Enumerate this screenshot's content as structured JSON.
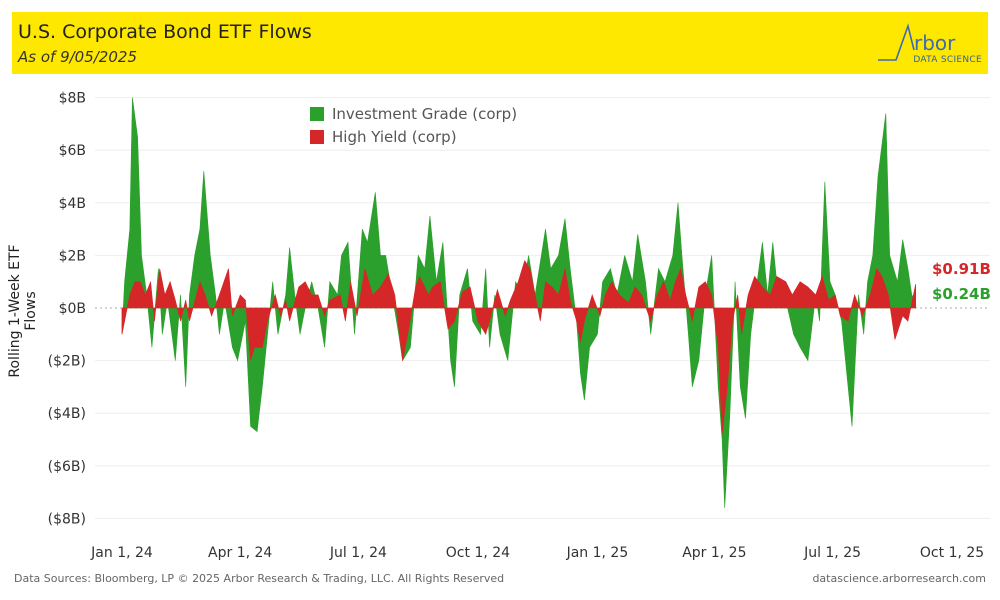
{
  "header": {
    "title": "U.S. Corporate Bond ETF Flows",
    "subtitle": "As of 9/05/2025",
    "logo_text": "Arbor",
    "logo_sub": "DATA SCIENCE"
  },
  "footer": {
    "sources": "Data Sources: Bloomberg, LP © 2025 Arbor Research & Trading, LLC. All Rights Reserved",
    "site": "datascience.arborresearch.com"
  },
  "colors": {
    "ig": "#2ca02c",
    "hy": "#d62728",
    "banner": "#FFE800"
  },
  "chart_data": {
    "type": "area",
    "title": "U.S. Corporate Bond ETF Flows",
    "ylabel": "Rolling 1-Week ETF Flows",
    "xlabel": "",
    "x_unit": "days since 2024-01-01",
    "ylim": [
      -8,
      8
    ],
    "yticks": [
      {
        "v": 8,
        "label": "$8B"
      },
      {
        "v": 6,
        "label": "$6B"
      },
      {
        "v": 4,
        "label": "$4B"
      },
      {
        "v": 2,
        "label": "$2B"
      },
      {
        "v": 0,
        "label": "$0B"
      },
      {
        "v": -2,
        "label": "($2B)"
      },
      {
        "v": -4,
        "label": "($4B)"
      },
      {
        "v": -6,
        "label": "($6B)"
      },
      {
        "v": -8,
        "label": "($8B)"
      }
    ],
    "xticks": [
      {
        "d": 0,
        "label": "Jan 1, 24"
      },
      {
        "d": 91,
        "label": "Apr 1, 24"
      },
      {
        "d": 182,
        "label": "Jul 1, 24"
      },
      {
        "d": 274,
        "label": "Oct 1, 24"
      },
      {
        "d": 366,
        "label": "Jan 1, 25"
      },
      {
        "d": 456,
        "label": "Apr 1, 25"
      },
      {
        "d": 547,
        "label": "Jul 1, 25"
      },
      {
        "d": 639,
        "label": "Oct 1, 25"
      }
    ],
    "legend": {
      "placement": "top-center"
    },
    "series": [
      {
        "name": "Investment Grade (corp)",
        "end_label": "$0.24B",
        "points": [
          [
            0,
            -1
          ],
          [
            2,
            1
          ],
          [
            6,
            3
          ],
          [
            8,
            8
          ],
          [
            12,
            6.5
          ],
          [
            15,
            2
          ],
          [
            19,
            0.5
          ],
          [
            23,
            -1.5
          ],
          [
            28,
            1.5
          ],
          [
            31,
            -1
          ],
          [
            35,
            0.3
          ],
          [
            41,
            -2
          ],
          [
            45,
            0.5
          ],
          [
            49,
            -3
          ],
          [
            52,
            0.5
          ],
          [
            56,
            2
          ],
          [
            60,
            3
          ],
          [
            63,
            5.2
          ],
          [
            68,
            2
          ],
          [
            72,
            0.5
          ],
          [
            75,
            -1
          ],
          [
            79,
            0.3
          ],
          [
            85,
            -1.5
          ],
          [
            89,
            -2
          ],
          [
            95,
            -0.5
          ],
          [
            99,
            -4.5
          ],
          [
            104,
            -4.7
          ],
          [
            108,
            -3
          ],
          [
            112,
            -1
          ],
          [
            116,
            1
          ],
          [
            120,
            -1
          ],
          [
            126,
            0.5
          ],
          [
            129,
            2.3
          ],
          [
            133,
            0.5
          ],
          [
            137,
            -1
          ],
          [
            141,
            0
          ],
          [
            146,
            1
          ],
          [
            151,
            0
          ],
          [
            156,
            -1.5
          ],
          [
            160,
            1
          ],
          [
            166,
            0.5
          ],
          [
            169,
            2
          ],
          [
            174,
            2.5
          ],
          [
            179,
            -1
          ],
          [
            185,
            3
          ],
          [
            189,
            2.5
          ],
          [
            195,
            4.4
          ],
          [
            199,
            2
          ],
          [
            203,
            2
          ],
          [
            208,
            0.5
          ],
          [
            213,
            -1
          ],
          [
            216,
            -2
          ],
          [
            222,
            -1.5
          ],
          [
            228,
            2
          ],
          [
            233,
            1.5
          ],
          [
            237,
            3.5
          ],
          [
            242,
            1
          ],
          [
            247,
            2.5
          ],
          [
            253,
            -2
          ],
          [
            256,
            -3
          ],
          [
            260,
            0.5
          ],
          [
            266,
            1.5
          ],
          [
            270,
            -0.5
          ],
          [
            276,
            -1
          ],
          [
            280,
            1.5
          ],
          [
            283,
            -1.5
          ],
          [
            287,
            0.5
          ],
          [
            291,
            -1
          ],
          [
            297,
            -2
          ],
          [
            303,
            1
          ],
          [
            308,
            0.5
          ],
          [
            313,
            2
          ],
          [
            318,
            0.5
          ],
          [
            326,
            3
          ],
          [
            330,
            1.5
          ],
          [
            336,
            2
          ],
          [
            341,
            3.4
          ],
          [
            345,
            1.5
          ],
          [
            350,
            -0.5
          ],
          [
            353,
            -2.5
          ],
          [
            356,
            -3.5
          ],
          [
            360,
            -1.5
          ],
          [
            366,
            -1
          ],
          [
            370,
            1
          ],
          [
            376,
            1.5
          ],
          [
            381,
            0.5
          ],
          [
            387,
            2
          ],
          [
            393,
            1
          ],
          [
            397,
            2.8
          ],
          [
            403,
            1
          ],
          [
            407,
            -1
          ],
          [
            413,
            1.5
          ],
          [
            418,
            1
          ],
          [
            424,
            2
          ],
          [
            428,
            4
          ],
          [
            431,
            2
          ],
          [
            436,
            -1
          ],
          [
            439,
            -3
          ],
          [
            444,
            -2
          ],
          [
            449,
            0.5
          ],
          [
            454,
            2
          ],
          [
            459,
            -3
          ],
          [
            462,
            -5
          ],
          [
            464,
            -7.6
          ],
          [
            468,
            -4
          ],
          [
            472,
            1
          ],
          [
            476,
            -3
          ],
          [
            480,
            -4.2
          ],
          [
            484,
            -1
          ],
          [
            489,
            1
          ],
          [
            493,
            2.5
          ],
          [
            497,
            0.5
          ],
          [
            501,
            2.5
          ],
          [
            505,
            0.5
          ],
          [
            511,
            0.3
          ],
          [
            517,
            -1
          ],
          [
            522,
            -1.5
          ],
          [
            528,
            -2
          ],
          [
            534,
            0.5
          ],
          [
            537,
            -0.5
          ],
          [
            541,
            4.8
          ],
          [
            545,
            1
          ],
          [
            549,
            0.5
          ],
          [
            554,
            -0.5
          ],
          [
            559,
            -3
          ],
          [
            562,
            -4.5
          ],
          [
            567,
            0.5
          ],
          [
            571,
            -1
          ],
          [
            574,
            1
          ],
          [
            578,
            2
          ],
          [
            582,
            5
          ],
          [
            588,
            7.4
          ],
          [
            591,
            2
          ],
          [
            597,
            1
          ],
          [
            601,
            2.6
          ],
          [
            605,
            1.5
          ],
          [
            608,
            0.5
          ],
          [
            611,
            0.24
          ]
        ]
      },
      {
        "name": "High Yield (corp)",
        "end_label": "$0.91B",
        "points": [
          [
            0,
            -1
          ],
          [
            6,
            0.5
          ],
          [
            10,
            1
          ],
          [
            14,
            1
          ],
          [
            18,
            0.5
          ],
          [
            22,
            1
          ],
          [
            25,
            -0.5
          ],
          [
            29,
            1.5
          ],
          [
            33,
            0.5
          ],
          [
            37,
            1
          ],
          [
            41,
            0.3
          ],
          [
            45,
            -0.5
          ],
          [
            49,
            0.3
          ],
          [
            52,
            -0.5
          ],
          [
            60,
            1
          ],
          [
            64,
            0.5
          ],
          [
            69,
            -0.3
          ],
          [
            75,
            0.5
          ],
          [
            82,
            1.5
          ],
          [
            85,
            -0.3
          ],
          [
            91,
            0.5
          ],
          [
            95,
            0.3
          ],
          [
            99,
            -2
          ],
          [
            102,
            -1.5
          ],
          [
            108,
            -1.5
          ],
          [
            112,
            -0.5
          ],
          [
            118,
            0.5
          ],
          [
            122,
            -0.3
          ],
          [
            126,
            0.3
          ],
          [
            129,
            -0.5
          ],
          [
            136,
            0.8
          ],
          [
            141,
            1
          ],
          [
            146,
            0.5
          ],
          [
            151,
            0.5
          ],
          [
            156,
            -0.3
          ],
          [
            160,
            0.3
          ],
          [
            168,
            0.5
          ],
          [
            172,
            -0.5
          ],
          [
            176,
            1
          ],
          [
            181,
            -0.3
          ],
          [
            187,
            1.5
          ],
          [
            193,
            0.5
          ],
          [
            199,
            0.8
          ],
          [
            205,
            1.3
          ],
          [
            210,
            0.5
          ],
          [
            216,
            -2
          ],
          [
            220,
            -1
          ],
          [
            226,
            0.8
          ],
          [
            229,
            1.2
          ],
          [
            236,
            0.5
          ],
          [
            239,
            0.8
          ],
          [
            245,
            1
          ],
          [
            251,
            -0.8
          ],
          [
            256,
            -0.5
          ],
          [
            262,
            0.6
          ],
          [
            268,
            0.8
          ],
          [
            274,
            -0.5
          ],
          [
            280,
            -1
          ],
          [
            283,
            -0.5
          ],
          [
            289,
            0.7
          ],
          [
            295,
            -0.3
          ],
          [
            299,
            0.3
          ],
          [
            305,
            1
          ],
          [
            310,
            1.8
          ],
          [
            314,
            1.5
          ],
          [
            318,
            0.5
          ],
          [
            322,
            -0.5
          ],
          [
            326,
            1
          ],
          [
            331,
            0.8
          ],
          [
            336,
            0.5
          ],
          [
            341,
            1.5
          ],
          [
            345,
            0.3
          ],
          [
            350,
            -0.5
          ],
          [
            353,
            -1.3
          ],
          [
            356,
            -0.5
          ],
          [
            362,
            0.5
          ],
          [
            368,
            -0.3
          ],
          [
            372,
            0.5
          ],
          [
            377,
            1
          ],
          [
            383,
            0.5
          ],
          [
            390,
            0.2
          ],
          [
            395,
            0.8
          ],
          [
            400,
            0.5
          ],
          [
            407,
            -0.5
          ],
          [
            412,
            0.5
          ],
          [
            417,
            1
          ],
          [
            422,
            0.3
          ],
          [
            426,
            1
          ],
          [
            430,
            1.5
          ],
          [
            434,
            0.5
          ],
          [
            439,
            -0.5
          ],
          [
            444,
            0.8
          ],
          [
            449,
            1
          ],
          [
            454,
            0.5
          ],
          [
            459,
            -1.5
          ],
          [
            462,
            -4.8
          ],
          [
            466,
            -3
          ],
          [
            470,
            -0.5
          ],
          [
            474,
            0.5
          ],
          [
            477,
            -1
          ],
          [
            482,
            0.5
          ],
          [
            487,
            1.2
          ],
          [
            493,
            0.8
          ],
          [
            499,
            0.5
          ],
          [
            504,
            1.2
          ],
          [
            511,
            1
          ],
          [
            516,
            0.5
          ],
          [
            522,
            1
          ],
          [
            528,
            0.8
          ],
          [
            534,
            0.5
          ],
          [
            539,
            1.2
          ],
          [
            544,
            0.3
          ],
          [
            549,
            0.5
          ],
          [
            553,
            -0.3
          ],
          [
            559,
            -0.5
          ],
          [
            564,
            0.5
          ],
          [
            570,
            -0.3
          ],
          [
            576,
            0.5
          ],
          [
            581,
            1.5
          ],
          [
            585,
            1.2
          ],
          [
            590,
            0.5
          ],
          [
            595,
            -1.2
          ],
          [
            601,
            -0.3
          ],
          [
            605,
            -0.5
          ],
          [
            611,
            0.91
          ]
        ]
      }
    ]
  }
}
